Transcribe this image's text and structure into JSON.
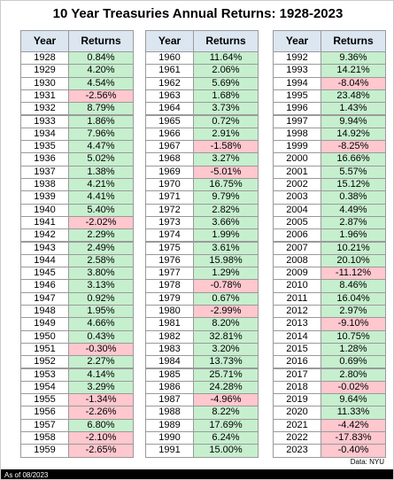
{
  "title": "10 Year Treasuries Annual Returns: 1928-2023",
  "tables": [
    {
      "headers": [
        "Year",
        "Returns"
      ],
      "rows": [
        [
          "1928",
          "0.84%"
        ],
        [
          "1929",
          "4.20%"
        ],
        [
          "1930",
          "4.54%"
        ],
        [
          "1931",
          "-2.56%"
        ],
        [
          "1932",
          "8.79%"
        ],
        [
          "1933",
          "1.86%"
        ],
        [
          "1934",
          "7.96%"
        ],
        [
          "1935",
          "4.47%"
        ],
        [
          "1936",
          "5.02%"
        ],
        [
          "1937",
          "1.38%"
        ],
        [
          "1938",
          "4.21%"
        ],
        [
          "1939",
          "4.41%"
        ],
        [
          "1940",
          "5.40%"
        ],
        [
          "1941",
          "-2.02%"
        ],
        [
          "1942",
          "2.29%"
        ],
        [
          "1943",
          "2.49%"
        ],
        [
          "1944",
          "2.58%"
        ],
        [
          "1945",
          "3.80%"
        ],
        [
          "1946",
          "3.13%"
        ],
        [
          "1947",
          "0.92%"
        ],
        [
          "1948",
          "1.95%"
        ],
        [
          "1949",
          "4.66%"
        ],
        [
          "1950",
          "0.43%"
        ],
        [
          "1951",
          "-0.30%"
        ],
        [
          "1952",
          "2.27%"
        ],
        [
          "1953",
          "4.14%"
        ],
        [
          "1954",
          "3.29%"
        ],
        [
          "1955",
          "-1.34%"
        ],
        [
          "1956",
          "-2.26%"
        ],
        [
          "1957",
          "6.80%"
        ],
        [
          "1958",
          "-2.10%"
        ],
        [
          "1959",
          "-2.65%"
        ]
      ]
    },
    {
      "headers": [
        "Year",
        "Returns"
      ],
      "rows": [
        [
          "1960",
          "11.64%"
        ],
        [
          "1961",
          "2.06%"
        ],
        [
          "1962",
          "5.69%"
        ],
        [
          "1963",
          "1.68%"
        ],
        [
          "1964",
          "3.73%"
        ],
        [
          "1965",
          "0.72%"
        ],
        [
          "1966",
          "2.91%"
        ],
        [
          "1967",
          "-1.58%"
        ],
        [
          "1968",
          "3.27%"
        ],
        [
          "1969",
          "-5.01%"
        ],
        [
          "1970",
          "16.75%"
        ],
        [
          "1971",
          "9.79%"
        ],
        [
          "1972",
          "2.82%"
        ],
        [
          "1973",
          "3.66%"
        ],
        [
          "1974",
          "1.99%"
        ],
        [
          "1975",
          "3.61%"
        ],
        [
          "1976",
          "15.98%"
        ],
        [
          "1977",
          "1.29%"
        ],
        [
          "1978",
          "-0.78%"
        ],
        [
          "1979",
          "0.67%"
        ],
        [
          "1980",
          "-2.99%"
        ],
        [
          "1981",
          "8.20%"
        ],
        [
          "1982",
          "32.81%"
        ],
        [
          "1983",
          "3.20%"
        ],
        [
          "1984",
          "13.73%"
        ],
        [
          "1985",
          "25.71%"
        ],
        [
          "1986",
          "24.28%"
        ],
        [
          "1987",
          "-4.96%"
        ],
        [
          "1988",
          "8.22%"
        ],
        [
          "1989",
          "17.69%"
        ],
        [
          "1990",
          "6.24%"
        ],
        [
          "1991",
          "15.00%"
        ]
      ]
    },
    {
      "headers": [
        "Year",
        "Returns"
      ],
      "rows": [
        [
          "1992",
          "9.36%"
        ],
        [
          "1993",
          "14.21%"
        ],
        [
          "1994",
          "-8.04%"
        ],
        [
          "1995",
          "23.48%"
        ],
        [
          "1996",
          "1.43%"
        ],
        [
          "1997",
          "9.94%"
        ],
        [
          "1998",
          "14.92%"
        ],
        [
          "1999",
          "-8.25%"
        ],
        [
          "2000",
          "16.66%"
        ],
        [
          "2001",
          "5.57%"
        ],
        [
          "2002",
          "15.12%"
        ],
        [
          "2003",
          "0.38%"
        ],
        [
          "2004",
          "4.49%"
        ],
        [
          "2005",
          "2.87%"
        ],
        [
          "2006",
          "1.96%"
        ],
        [
          "2007",
          "10.21%"
        ],
        [
          "2008",
          "20.10%"
        ],
        [
          "2009",
          "-11.12%"
        ],
        [
          "2010",
          "8.46%"
        ],
        [
          "2011",
          "16.04%"
        ],
        [
          "2012",
          "2.97%"
        ],
        [
          "2013",
          "-9.10%"
        ],
        [
          "2014",
          "10.75%"
        ],
        [
          "2015",
          "1.28%"
        ],
        [
          "2016",
          "0.69%"
        ],
        [
          "2017",
          "2.80%"
        ],
        [
          "2018",
          "-0.02%"
        ],
        [
          "2019",
          "9.64%"
        ],
        [
          "2020",
          "11.33%"
        ],
        [
          "2021",
          "-4.42%"
        ],
        [
          "2022",
          "-17.83%"
        ],
        [
          "2023",
          "-0.40%"
        ]
      ]
    }
  ],
  "source": "Data: NYU",
  "footer": "As of 08/2023"
}
